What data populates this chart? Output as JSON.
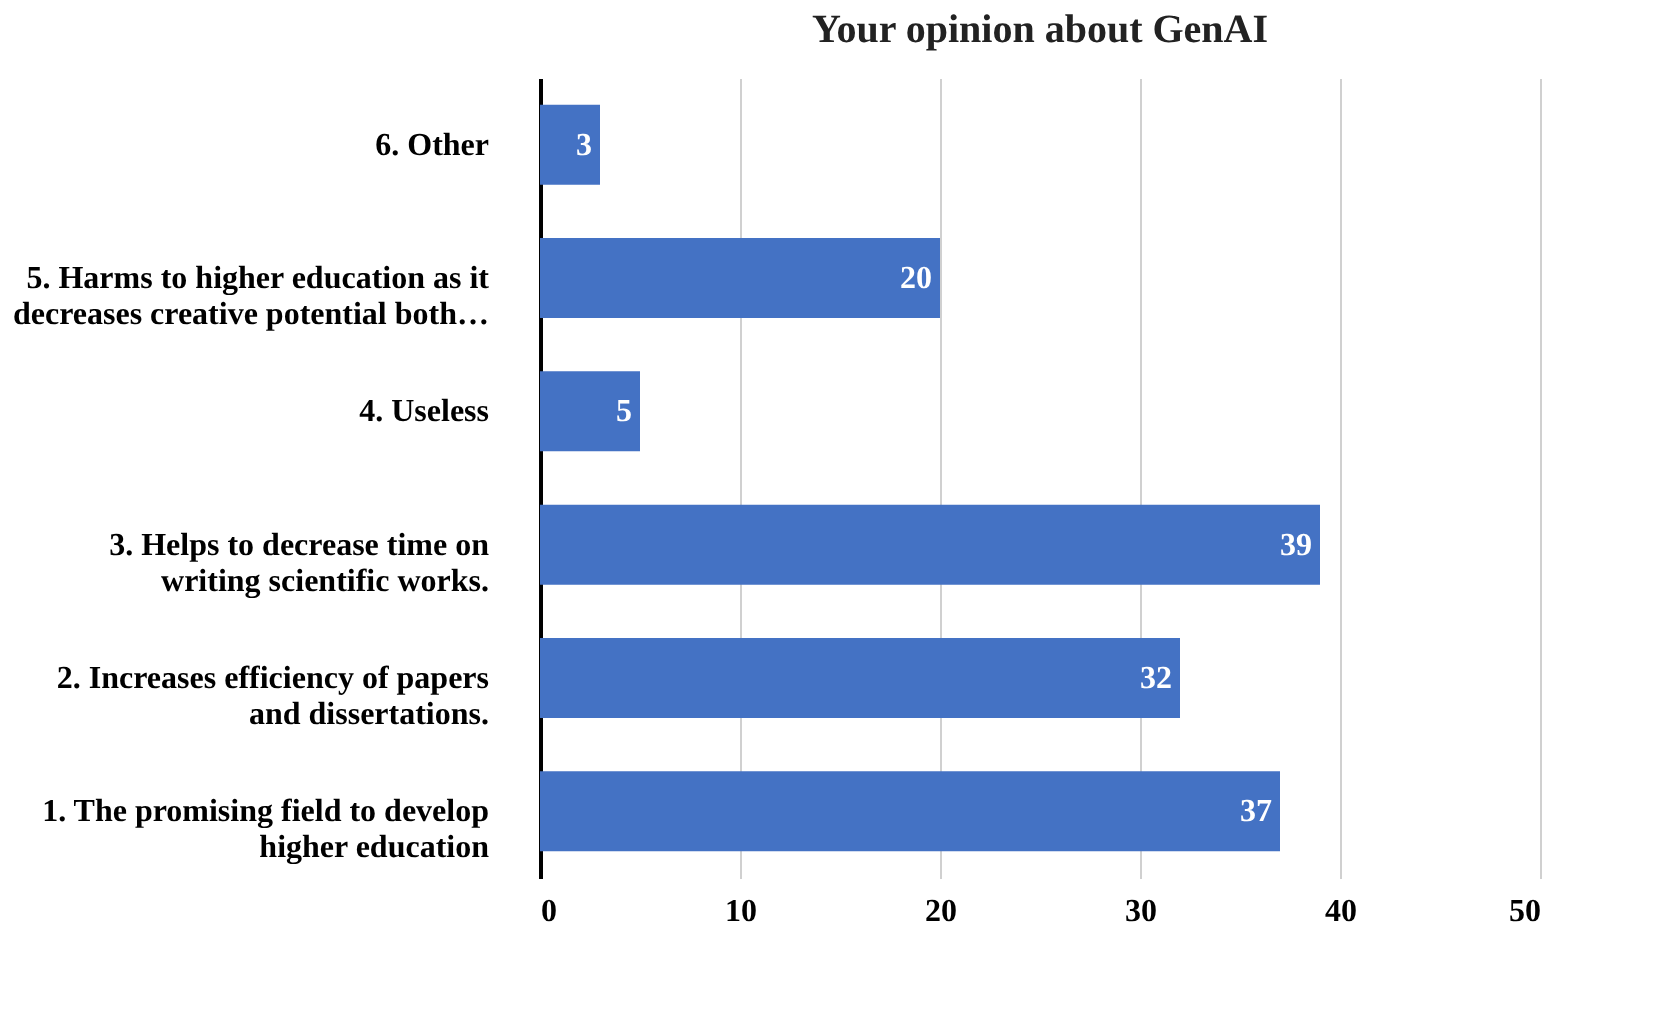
{
  "chart_data": {
    "type": "bar",
    "orientation": "horizontal",
    "title": "Your opinion about GenAI",
    "categories": [
      "6. Other",
      "5. Harms to higher education as it decreases creative potential both…",
      "4.  Useless",
      "3. Helps to decrease time on writing scientific works.",
      "2. Increases efficiency of papers and dissertations.",
      "1.  The promising field to develop higher education"
    ],
    "values": [
      3,
      20,
      5,
      39,
      32,
      37
    ],
    "color": "#4472c4",
    "xlim": [
      0,
      50
    ],
    "xticks": [
      0,
      10,
      20,
      30,
      40,
      50
    ],
    "grid": "x",
    "data_labels": true
  }
}
